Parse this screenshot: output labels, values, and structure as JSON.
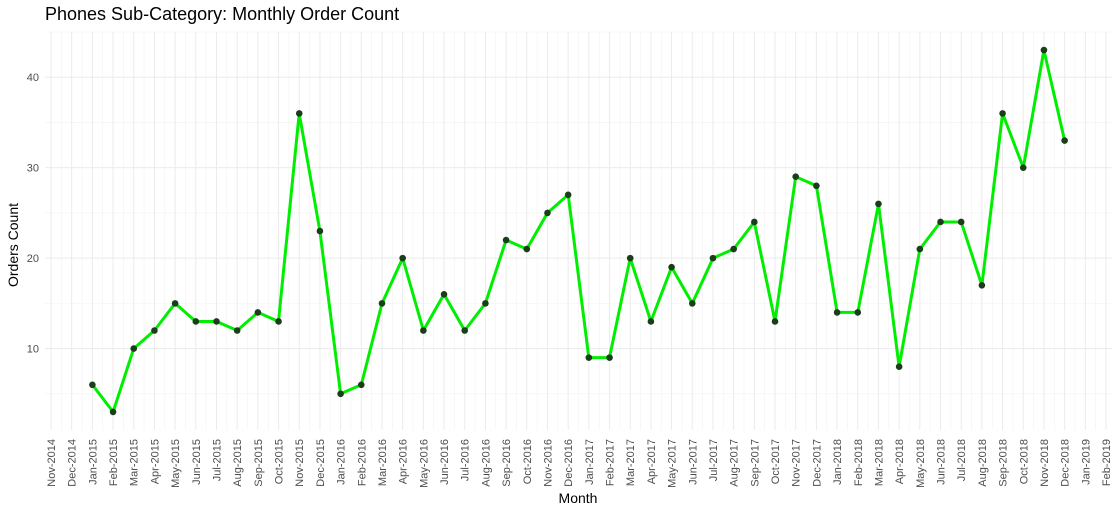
{
  "chart_data": {
    "type": "line",
    "title": "Phones Sub-Category: Monthly Order Count",
    "xlabel": "Month",
    "ylabel": "Orders Count",
    "x_ticks": [
      "Nov-2014",
      "Dec-2014",
      "Jan-2015",
      "Feb-2015",
      "Mar-2015",
      "Apr-2015",
      "May-2015",
      "Jun-2015",
      "Jul-2015",
      "Aug-2015",
      "Sep-2015",
      "Oct-2015",
      "Nov-2015",
      "Dec-2015",
      "Jan-2016",
      "Feb-2016",
      "Mar-2016",
      "Apr-2016",
      "May-2016",
      "Jun-2016",
      "Jul-2016",
      "Aug-2016",
      "Sep-2016",
      "Oct-2016",
      "Nov-2016",
      "Dec-2016",
      "Jan-2017",
      "Feb-2017",
      "Mar-2017",
      "Apr-2017",
      "May-2017",
      "Jun-2017",
      "Jul-2017",
      "Aug-2017",
      "Sep-2017",
      "Oct-2017",
      "Nov-2017",
      "Dec-2017",
      "Jan-2018",
      "Feb-2018",
      "Mar-2018",
      "Apr-2018",
      "May-2018",
      "Jun-2018",
      "Jul-2018",
      "Aug-2018",
      "Sep-2018",
      "Oct-2018",
      "Nov-2018",
      "Dec-2018",
      "Jan-2019",
      "Feb-2019"
    ],
    "y_ticks": [
      10,
      20,
      30,
      40
    ],
    "xlim": [
      "Nov-2014",
      "Feb-2019"
    ],
    "ylim": [
      1,
      45
    ],
    "grid": true,
    "line_color": "#00ee00",
    "point_color": "#1a3d1a",
    "series": [
      {
        "x": [
          "Jan-2015",
          "Feb-2015",
          "Mar-2015",
          "Apr-2015",
          "May-2015",
          "Jun-2015",
          "Jul-2015",
          "Aug-2015",
          "Sep-2015",
          "Oct-2015",
          "Nov-2015",
          "Dec-2015",
          "Jan-2016",
          "Feb-2016",
          "Mar-2016",
          "Apr-2016",
          "May-2016",
          "Jun-2016",
          "Jul-2016",
          "Aug-2016",
          "Sep-2016",
          "Oct-2016",
          "Nov-2016",
          "Dec-2016",
          "Jan-2017",
          "Feb-2017",
          "Mar-2017",
          "Apr-2017",
          "May-2017",
          "Jun-2017",
          "Jul-2017",
          "Aug-2017",
          "Sep-2017",
          "Oct-2017",
          "Nov-2017",
          "Dec-2017",
          "Jan-2018",
          "Feb-2018",
          "Mar-2018",
          "Apr-2018",
          "May-2018",
          "Jun-2018",
          "Jul-2018",
          "Aug-2018",
          "Sep-2018",
          "Oct-2018",
          "Nov-2018",
          "Dec-2018"
        ],
        "values": [
          6,
          3,
          10,
          12,
          15,
          13,
          13,
          12,
          14,
          13,
          36,
          23,
          5,
          6,
          15,
          20,
          12,
          16,
          12,
          15,
          22,
          21,
          25,
          27,
          9,
          9,
          20,
          13,
          19,
          15,
          20,
          21,
          24,
          13,
          29,
          28,
          14,
          14,
          26,
          8,
          21,
          24,
          24,
          17,
          36,
          30,
          43,
          33
        ]
      }
    ]
  }
}
